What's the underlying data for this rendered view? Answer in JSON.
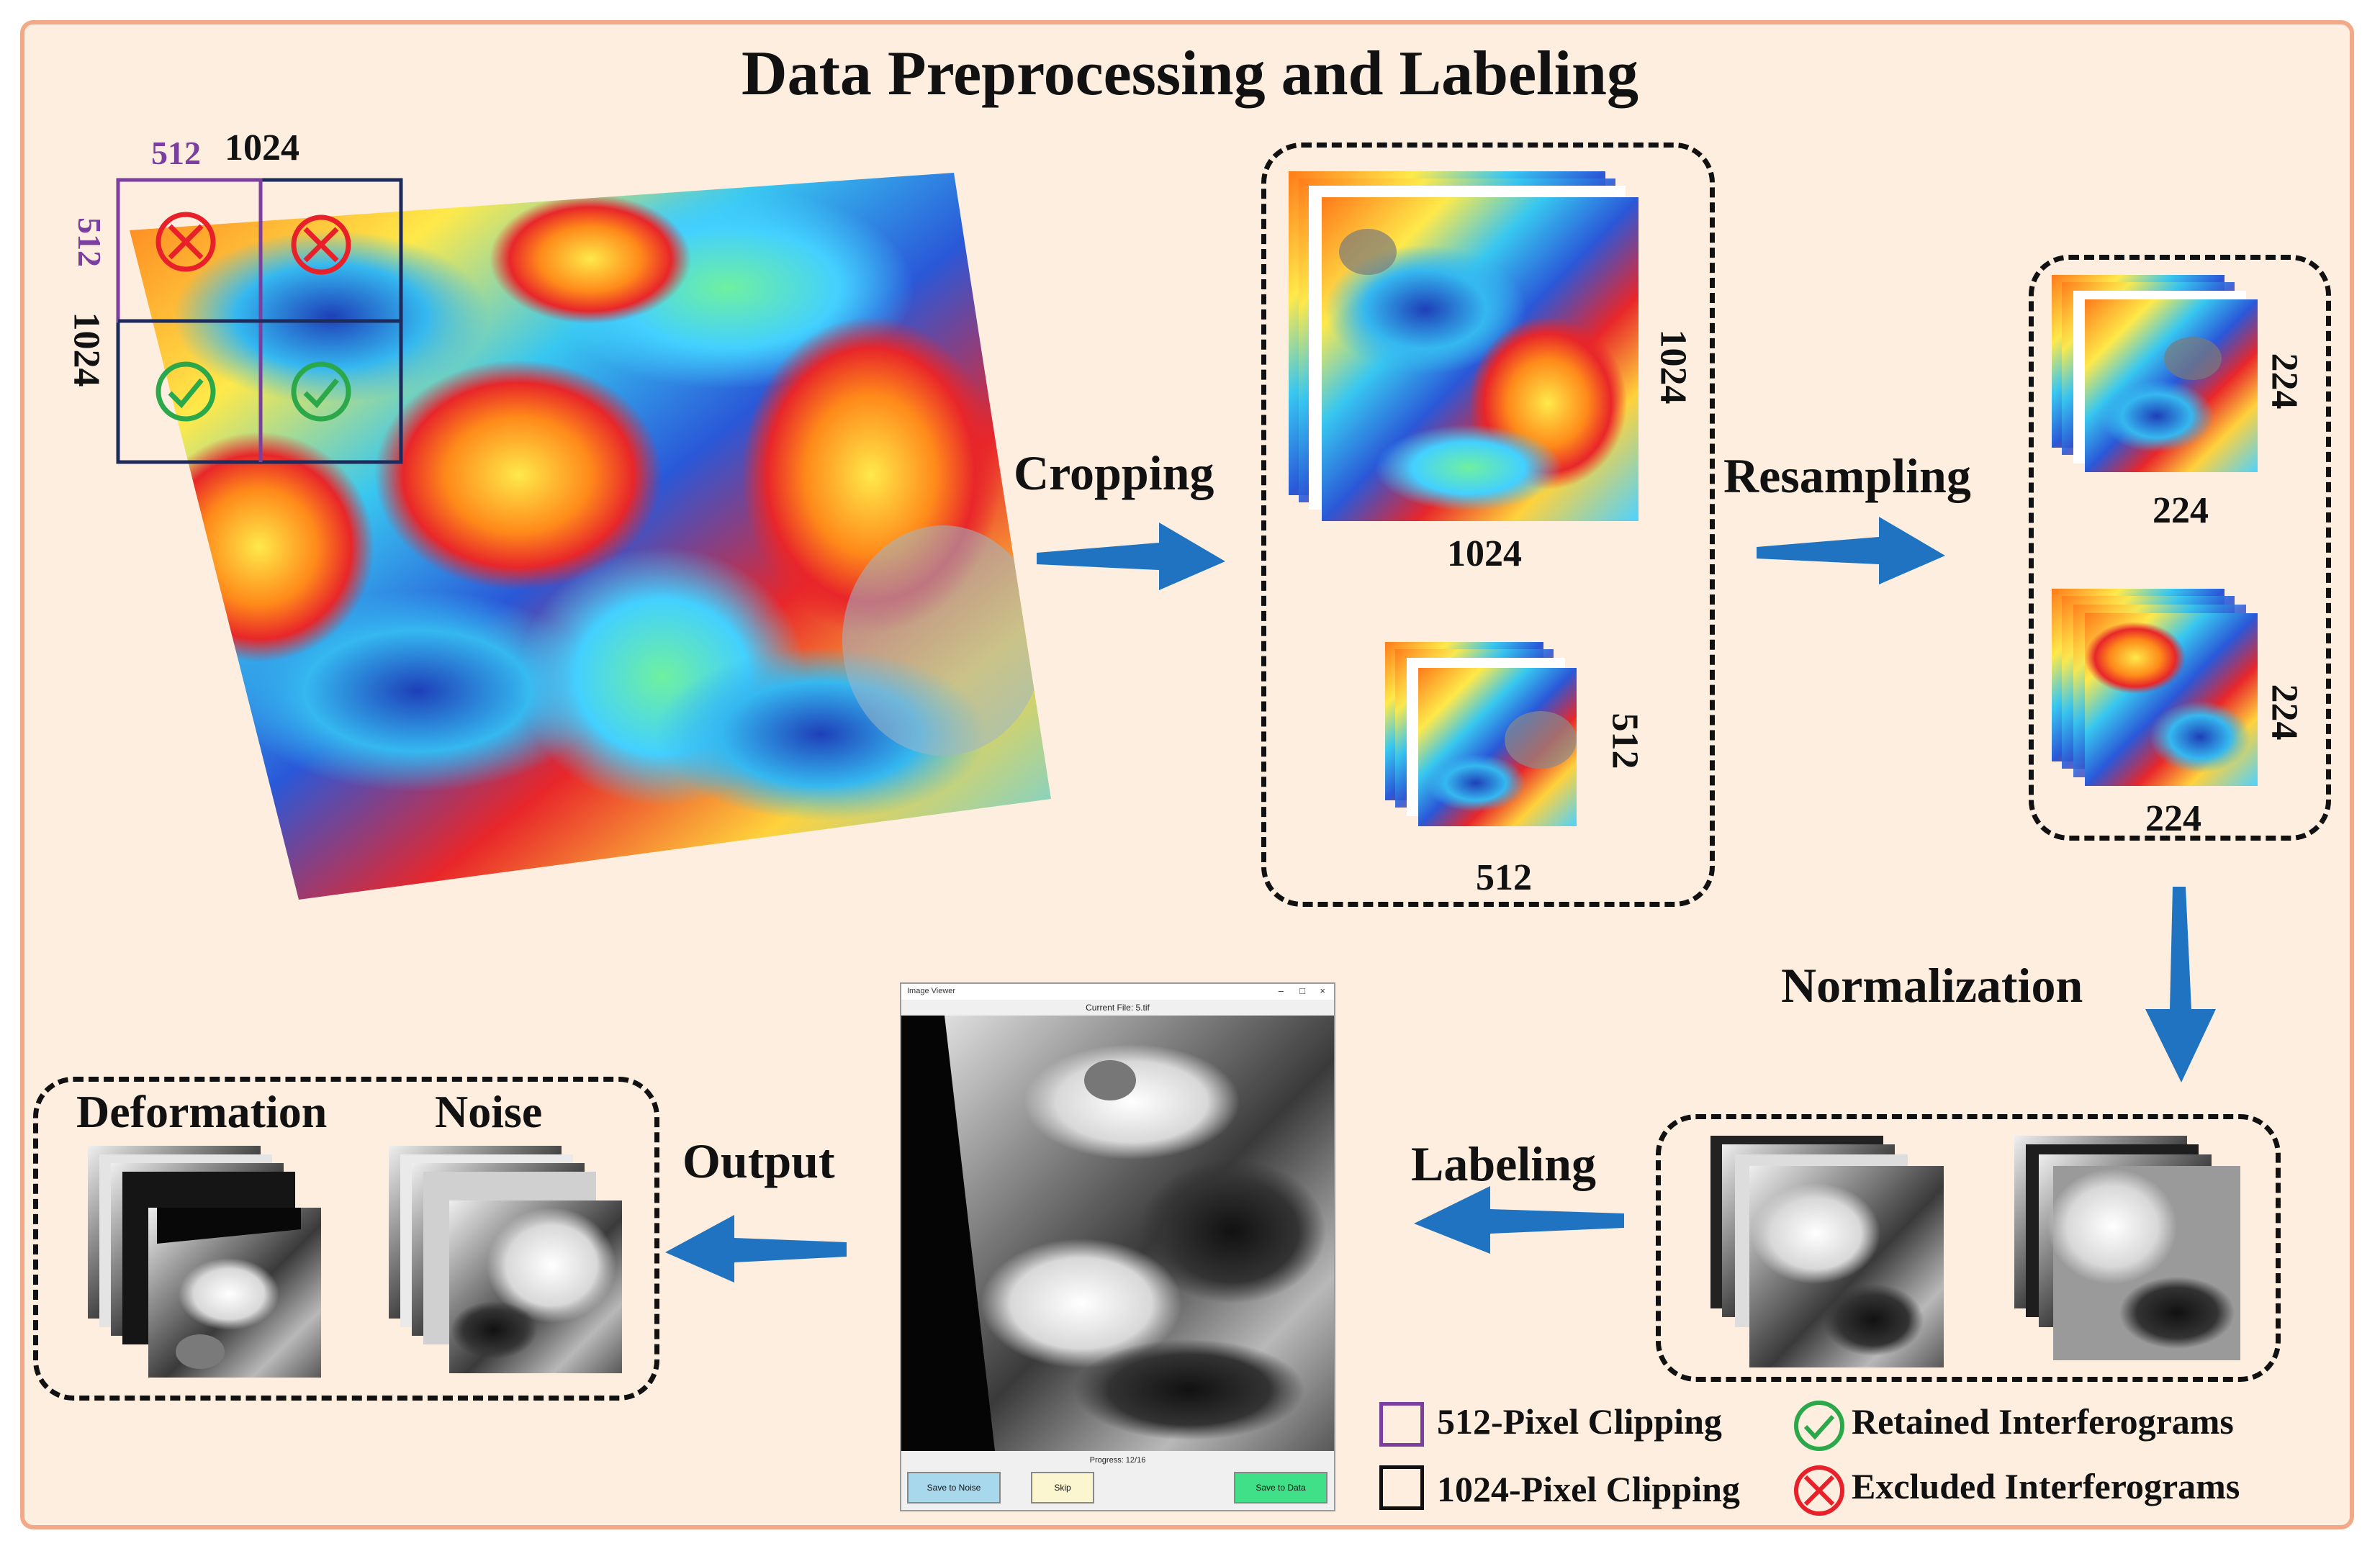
{
  "title": "Data Preprocessing and Labeling",
  "source": {
    "dim_512_top": "512",
    "dim_1024_top": "1024",
    "dim_512_side": "512",
    "dim_1024_side": "1024"
  },
  "steps": {
    "cropping": "Cropping",
    "resampling": "Resampling",
    "normalization": "Normalization",
    "labeling": "Labeling",
    "output": "Output"
  },
  "cropped": {
    "large_w": "1024",
    "large_h": "1024",
    "small_w": "512",
    "small_h": "512"
  },
  "resampled": {
    "top_w": "224",
    "top_h": "224",
    "bottom_w": "224",
    "bottom_h": "224"
  },
  "output": {
    "deformation": "Deformation",
    "noise": "Noise"
  },
  "viewer": {
    "window_title": "Image Viewer",
    "current_file": "Current File: 5.tif",
    "progress": "Progress: 12/16",
    "save_noise": "Save to Noise",
    "skip": "Skip",
    "save_data": "Save to Data"
  },
  "legend": {
    "clip512": "512-Pixel Clipping",
    "clip1024": "1024-Pixel Clipping",
    "retained": "Retained Interferograms",
    "excluded": "Excluded Interferograms"
  },
  "colors": {
    "background": "#fdeee0",
    "border": "#f2a988",
    "purple": "#7b3fa0",
    "navy": "#1c2a5c",
    "arrow_blue": "#1f73c0",
    "green_check": "#2aa84a",
    "red_cross": "#e8202a"
  }
}
